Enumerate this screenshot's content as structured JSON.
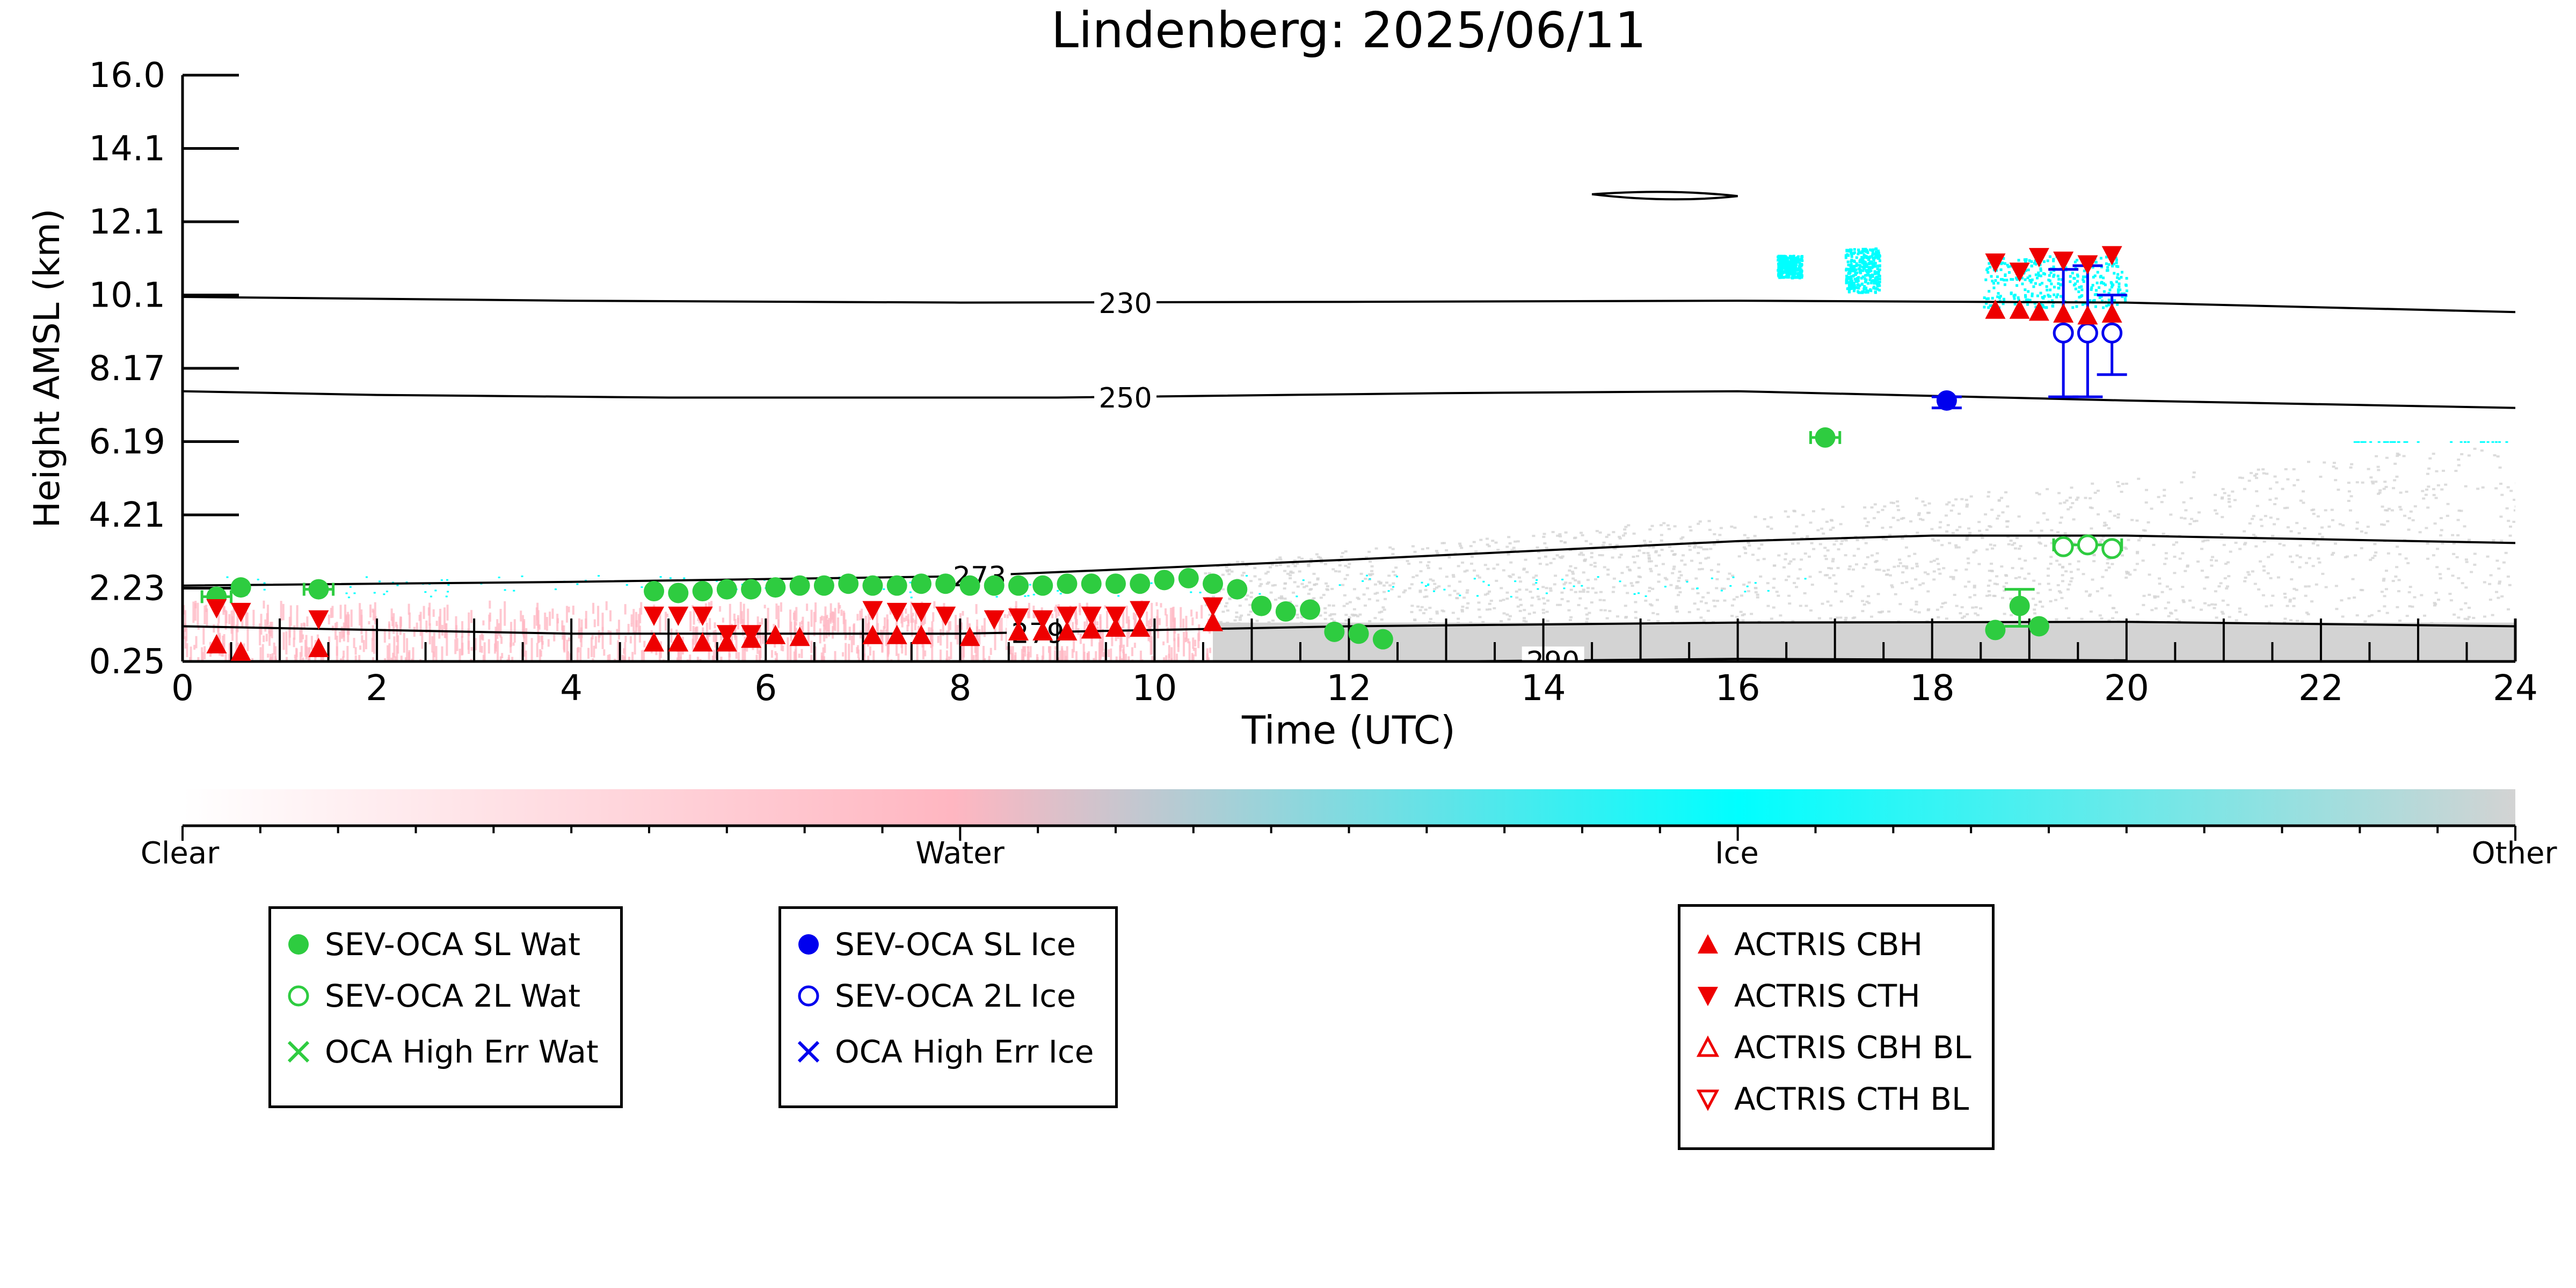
{
  "chart_data": {
    "type": "scatter",
    "title": "Lindenberg: 2025/06/11",
    "xlabel": "Time (UTC)",
    "ylabel": "Height AMSL (km)",
    "xlim": [
      0,
      24
    ],
    "ylim": [
      0.25,
      16.0
    ],
    "x_ticks": [
      0,
      2,
      4,
      6,
      8,
      10,
      12,
      14,
      16,
      18,
      20,
      22,
      24
    ],
    "y_ticks": [
      "0.25",
      "2.23",
      "4.21",
      "6.19",
      "8.17",
      "10.1",
      "12.1",
      "14.1",
      "16.0"
    ],
    "y_tick_values": [
      0.25,
      2.23,
      4.21,
      6.19,
      8.17,
      10.1,
      12.1,
      14.1,
      16.0
    ],
    "temperature_contours": [
      {
        "label": "230",
        "label_x": 9.7,
        "points": [
          [
            0,
            10.05
          ],
          [
            4,
            9.95
          ],
          [
            8,
            9.9
          ],
          [
            12,
            9.92
          ],
          [
            16,
            9.95
          ],
          [
            20,
            9.9
          ],
          [
            24,
            9.65
          ]
        ]
      },
      {
        "label": "250",
        "label_x": 9.7,
        "points": [
          [
            0,
            7.55
          ],
          [
            2,
            7.45
          ],
          [
            5,
            7.38
          ],
          [
            9,
            7.38
          ],
          [
            13,
            7.5
          ],
          [
            16,
            7.55
          ],
          [
            20,
            7.3
          ],
          [
            24,
            7.1
          ]
        ]
      },
      {
        "label": "273",
        "label_x": 8.2,
        "points": [
          [
            0,
            2.3
          ],
          [
            4,
            2.4
          ],
          [
            8,
            2.55
          ],
          [
            12,
            3.0
          ],
          [
            16,
            3.5
          ],
          [
            18,
            3.65
          ],
          [
            20,
            3.65
          ],
          [
            24,
            3.45
          ]
        ]
      },
      {
        "label": "279",
        "label_x": 8.8,
        "points": [
          [
            0,
            1.2
          ],
          [
            4,
            1.0
          ],
          [
            8,
            1.0
          ],
          [
            12,
            1.2
          ],
          [
            16,
            1.3
          ],
          [
            20,
            1.32
          ],
          [
            24,
            1.2
          ]
        ]
      },
      {
        "label": "290",
        "label_x": 14.1,
        "points": [
          [
            13,
            0.25
          ],
          [
            16,
            0.32
          ],
          [
            20,
            0.28
          ]
        ]
      }
    ],
    "colorbar": {
      "labels": [
        "Clear",
        "Water",
        "Ice",
        "Other"
      ],
      "colors": [
        "#ffffff",
        "#ffb6c1",
        "#00ffff",
        "#d3d3d3"
      ]
    },
    "series": [
      {
        "name": "SEV-OCA SL Wat",
        "color": "#2ecc40",
        "marker": "filled-circle",
        "points": [
          [
            0.35,
            2.0
          ],
          [
            0.6,
            2.25
          ],
          [
            1.4,
            2.2
          ],
          [
            4.85,
            2.15
          ],
          [
            5.1,
            2.1
          ],
          [
            5.35,
            2.15
          ],
          [
            5.6,
            2.2
          ],
          [
            5.85,
            2.2
          ],
          [
            6.1,
            2.25
          ],
          [
            6.35,
            2.3
          ],
          [
            6.6,
            2.3
          ],
          [
            6.85,
            2.35
          ],
          [
            7.1,
            2.3
          ],
          [
            7.35,
            2.3
          ],
          [
            7.6,
            2.35
          ],
          [
            7.85,
            2.35
          ],
          [
            8.1,
            2.3
          ],
          [
            8.35,
            2.3
          ],
          [
            8.6,
            2.3
          ],
          [
            8.85,
            2.3
          ],
          [
            9.1,
            2.35
          ],
          [
            9.35,
            2.35
          ],
          [
            9.6,
            2.35
          ],
          [
            9.85,
            2.35
          ],
          [
            10.1,
            2.45
          ],
          [
            10.35,
            2.5
          ],
          [
            10.6,
            2.35
          ],
          [
            10.85,
            2.2
          ],
          [
            11.1,
            1.75
          ],
          [
            11.35,
            1.6
          ],
          [
            11.6,
            1.65
          ],
          [
            11.85,
            1.05
          ],
          [
            12.1,
            1.0
          ],
          [
            12.35,
            0.85
          ],
          [
            16.9,
            6.3
          ],
          [
            18.65,
            1.1
          ],
          [
            18.9,
            1.75
          ],
          [
            19.1,
            1.2
          ]
        ]
      },
      {
        "name": "SEV-OCA 2L Wat",
        "color": "#2ecc40",
        "marker": "open-circle",
        "points": [
          [
            19.35,
            3.35
          ],
          [
            19.6,
            3.4
          ],
          [
            19.85,
            3.3
          ]
        ]
      },
      {
        "name": "OCA High Err Wat",
        "color": "#2ecc40",
        "marker": "x",
        "points": []
      },
      {
        "name": "SEV-OCA SL Ice",
        "color": "#0000ee",
        "marker": "filled-circle",
        "points": [
          [
            18.15,
            7.3
          ]
        ]
      },
      {
        "name": "SEV-OCA 2L Ice",
        "color": "#0000ee",
        "marker": "open-circle",
        "points": [
          [
            19.35,
            9.1
          ],
          [
            19.6,
            9.1
          ],
          [
            19.85,
            9.1
          ]
        ]
      },
      {
        "name": "OCA High Err Ice",
        "color": "#0000ee",
        "marker": "x",
        "points": []
      },
      {
        "name": "ACTRIS CBH",
        "color": "#ee0000",
        "marker": "triangle-up",
        "points": [
          [
            0.35,
            0.7
          ],
          [
            0.6,
            0.5
          ],
          [
            1.4,
            0.6
          ],
          [
            4.85,
            0.75
          ],
          [
            5.1,
            0.75
          ],
          [
            5.35,
            0.75
          ],
          [
            5.6,
            0.75
          ],
          [
            5.85,
            0.85
          ],
          [
            6.1,
            0.95
          ],
          [
            6.35,
            0.9
          ],
          [
            7.1,
            0.95
          ],
          [
            7.35,
            0.95
          ],
          [
            7.6,
            0.95
          ],
          [
            8.1,
            0.9
          ],
          [
            8.6,
            1.05
          ],
          [
            8.85,
            1.05
          ],
          [
            9.1,
            1.05
          ],
          [
            9.35,
            1.1
          ],
          [
            9.6,
            1.15
          ],
          [
            9.85,
            1.15
          ],
          [
            10.6,
            1.3
          ],
          [
            18.65,
            9.7
          ],
          [
            18.9,
            9.7
          ],
          [
            19.1,
            9.65
          ],
          [
            19.35,
            9.6
          ],
          [
            19.6,
            9.55
          ],
          [
            19.85,
            9.6
          ]
        ]
      },
      {
        "name": "ACTRIS CTH",
        "color": "#ee0000",
        "marker": "triangle-down",
        "points": [
          [
            0.35,
            1.7
          ],
          [
            0.6,
            1.6
          ],
          [
            1.4,
            1.4
          ],
          [
            4.85,
            1.5
          ],
          [
            5.1,
            1.5
          ],
          [
            5.35,
            1.5
          ],
          [
            5.6,
            1.0
          ],
          [
            5.85,
            1.0
          ],
          [
            7.1,
            1.65
          ],
          [
            7.35,
            1.6
          ],
          [
            7.6,
            1.6
          ],
          [
            7.85,
            1.5
          ],
          [
            8.35,
            1.4
          ],
          [
            8.6,
            1.45
          ],
          [
            8.85,
            1.4
          ],
          [
            9.1,
            1.5
          ],
          [
            9.35,
            1.5
          ],
          [
            9.6,
            1.5
          ],
          [
            9.85,
            1.65
          ],
          [
            10.6,
            1.75
          ],
          [
            18.65,
            11.0
          ],
          [
            18.9,
            10.75
          ],
          [
            19.1,
            11.15
          ],
          [
            19.35,
            11.05
          ],
          [
            19.6,
            10.95
          ],
          [
            19.85,
            11.2
          ]
        ]
      },
      {
        "name": "ACTRIS CBH BL",
        "color": "#ee0000",
        "marker": "open-triangle-up",
        "points": []
      },
      {
        "name": "ACTRIS CTH BL",
        "color": "#ee0000",
        "marker": "open-triangle-down",
        "points": []
      }
    ],
    "error_bars": [
      {
        "color": "#2ecc40",
        "x": 0.35,
        "y": 2.0,
        "xerr": 0.15
      },
      {
        "color": "#2ecc40",
        "x": 1.4,
        "y": 2.2,
        "xerr": 0.15
      },
      {
        "color": "#2ecc40",
        "x": 16.9,
        "y": 6.3,
        "xerr": 0.15
      },
      {
        "color": "#2ecc40",
        "x": 18.9,
        "y": 1.75,
        "ylo": 1.2,
        "yhi": 2.2
      },
      {
        "color": "#2ecc40",
        "x": 19.6,
        "y": 3.4,
        "xerr": 0.35
      },
      {
        "color": "#0000ee",
        "x": 18.15,
        "y": 7.3,
        "ylo": 7.1,
        "yhi": 7.4
      },
      {
        "color": "#0000ee",
        "x": 19.35,
        "y": 9.1,
        "ylo": 7.4,
        "yhi": 10.8
      },
      {
        "color": "#0000ee",
        "x": 19.6,
        "y": 9.1,
        "ylo": 7.4,
        "yhi": 10.9
      },
      {
        "color": "#0000ee",
        "x": 19.85,
        "y": 9.1,
        "ylo": 8.0,
        "yhi": 10.1
      }
    ]
  },
  "legends": [
    {
      "items": [
        {
          "label": "SEV-OCA SL Wat",
          "marker": "filled-circle",
          "color": "#2ecc40"
        },
        {
          "label": "SEV-OCA 2L Wat",
          "marker": "open-circle",
          "color": "#2ecc40"
        },
        {
          "label": "OCA High Err Wat",
          "marker": "x",
          "color": "#2ecc40"
        }
      ]
    },
    {
      "items": [
        {
          "label": "SEV-OCA SL Ice",
          "marker": "filled-circle",
          "color": "#0000ee"
        },
        {
          "label": "SEV-OCA 2L Ice",
          "marker": "open-circle",
          "color": "#0000ee"
        },
        {
          "label": "OCA High Err Ice",
          "marker": "x",
          "color": "#0000ee"
        }
      ]
    },
    {
      "items": [
        {
          "label": "ACTRIS CBH",
          "marker": "triangle-up",
          "color": "#ee0000"
        },
        {
          "label": "ACTRIS CTH",
          "marker": "triangle-down",
          "color": "#ee0000"
        },
        {
          "label": "ACTRIS CBH BL",
          "marker": "open-triangle-up",
          "color": "#ee0000"
        },
        {
          "label": "ACTRIS CTH BL",
          "marker": "open-triangle-down",
          "color": "#ee0000"
        }
      ]
    }
  ]
}
